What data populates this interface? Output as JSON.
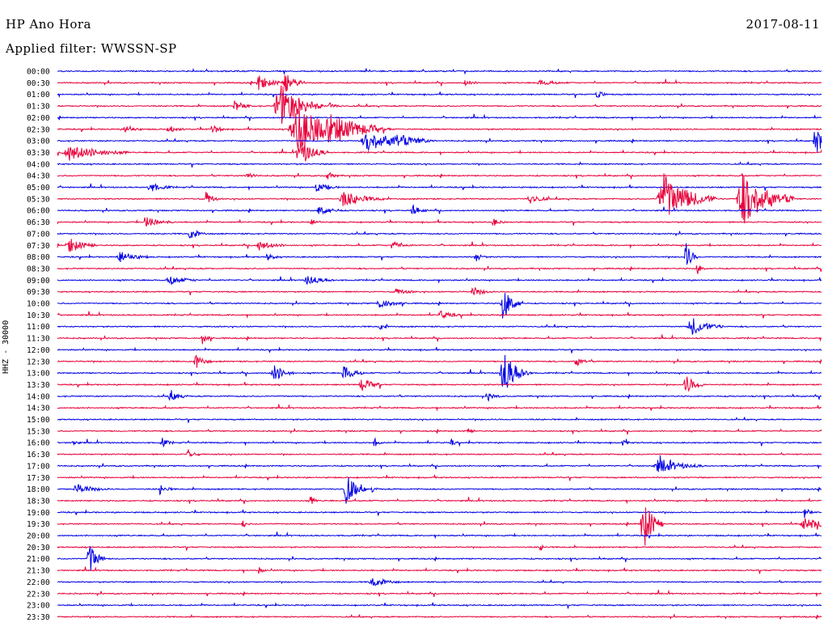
{
  "header": {
    "station": "HP Ano Hora",
    "filter": "Applied filter: WWSSN-SP",
    "date": "2017-08-11"
  },
  "axis_label": "HHZ - 30000",
  "colors": {
    "blue": "#0000e6",
    "red": "#e8003a",
    "background": "#ffffff",
    "text": "#000000"
  },
  "chart_data": {
    "type": "line",
    "rows": [
      "00:00",
      "00:30",
      "01:00",
      "01:30",
      "02:00",
      "02:30",
      "03:00",
      "03:30",
      "04:00",
      "04:30",
      "05:00",
      "05:30",
      "06:00",
      "06:30",
      "07:00",
      "07:30",
      "08:00",
      "08:30",
      "09:00",
      "09:30",
      "10:00",
      "10:30",
      "11:00",
      "11:30",
      "12:00",
      "12:30",
      "13:00",
      "13:30",
      "14:00",
      "14:30",
      "15:00",
      "15:30",
      "16:00",
      "16:30",
      "17:00",
      "17:30",
      "18:00",
      "18:30",
      "19:00",
      "19:30",
      "20:00",
      "20:30",
      "21:00",
      "21:30",
      "22:00",
      "22:30",
      "23:00",
      "23:30"
    ],
    "trace_colors": [
      "blue",
      "red"
    ]
  }
}
